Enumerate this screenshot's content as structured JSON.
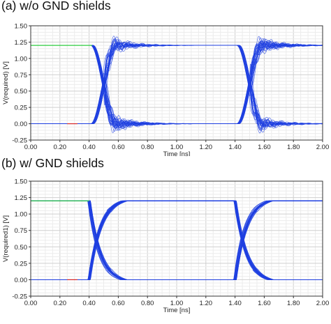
{
  "panels": {
    "a": {
      "title": "(a) w/o GND shields"
    },
    "b": {
      "title": "(b) w/ GND shields"
    }
  },
  "colors": {
    "eye": "#1f3fe0",
    "grid": "#d9d9d9",
    "rail_green": "#2ecc40",
    "edge_red": "#d62728"
  },
  "chart_data": [
    {
      "type": "line",
      "panel": "a",
      "title": "",
      "xlabel": "Time [ns]",
      "ylabel": "V(required) [V]",
      "xlim": [
        0.0,
        2.0
      ],
      "ylim": [
        -0.25,
        1.5
      ],
      "xticks": [
        "0.00",
        "0.20",
        "0.40",
        "0.60",
        "0.80",
        "1.00",
        "1.20",
        "1.40",
        "1.60",
        "1.80",
        "2.00"
      ],
      "yticks": [
        "-0.25",
        "0.00",
        "0.25",
        "0.50",
        "0.75",
        "1.00",
        "1.25",
        "1.50"
      ],
      "grid": true,
      "series": [
        {
          "kind": "eye-diagram",
          "high_v": 1.2,
          "low_v": 0.0,
          "transitions_ns": [
            [
              0.42,
              0.58
            ],
            [
              1.42,
              1.58
            ]
          ],
          "crossing_v": 0.6,
          "crossings_ns": [
            0.5,
            1.5
          ],
          "overshoot_peak_v": 1.45,
          "undershoot_peak_v": -0.15,
          "settling_ns": 0.2
        }
      ]
    },
    {
      "type": "line",
      "panel": "b",
      "title": "",
      "xlabel": "Time [ns]",
      "ylabel": "V(required1) [V]",
      "xlim": [
        0.0,
        2.0
      ],
      "ylim": [
        -0.25,
        1.5
      ],
      "xticks": [
        "0.00",
        "0.20",
        "0.40",
        "0.60",
        "0.80",
        "1.00",
        "1.20",
        "1.40",
        "1.60",
        "1.80",
        "2.00"
      ],
      "yticks": [
        "-0.25",
        "0.00",
        "0.25",
        "0.50",
        "0.75",
        "1.00",
        "1.25",
        "1.50"
      ],
      "grid": true,
      "series": [
        {
          "kind": "eye-diagram",
          "high_v": 1.2,
          "low_v": 0.0,
          "transitions_ns": [
            [
              0.4,
              0.65
            ],
            [
              1.4,
              1.65
            ]
          ],
          "crossing_v": 0.6,
          "crossings_ns": [
            0.5,
            1.5
          ],
          "overshoot_peak_v": 1.22,
          "undershoot_peak_v": -0.02,
          "settling_ns": 0.05
        }
      ]
    }
  ]
}
